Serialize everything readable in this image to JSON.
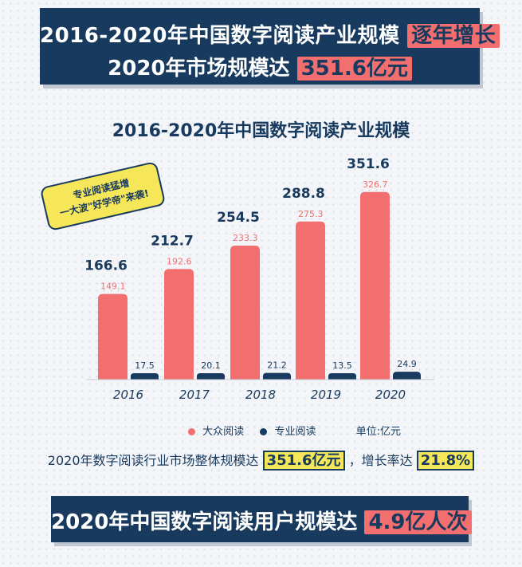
{
  "header": {
    "line1_prefix": "2016-2020年中国数字阅读产业规模",
    "line1_highlight": "逐年增长",
    "line2_prefix": "2020年市场规模达",
    "line2_highlight": "351.6亿元"
  },
  "callout": {
    "line1": "专业阅读猛增",
    "line2": "一大波\"好学帝\"来袭!"
  },
  "legend": {
    "series1": "大众阅读",
    "series2": "专业阅读",
    "unit": "单位:亿元"
  },
  "summary": {
    "prefix": "2020年数字阅读行业市场整体规模达",
    "value": "351.6亿元",
    "mid": "，增长率达",
    "rate": "21.8%"
  },
  "footer": {
    "prefix": "2020年中国数字阅读用户规模达",
    "highlight": "4.9亿人次"
  },
  "colors": {
    "mass": "#f36f6f",
    "professional": "#173a5e",
    "navy": "#173a5e"
  },
  "chart_data": {
    "type": "bar",
    "title": "2016-2020年中国数字阅读产业规模",
    "categories": [
      "2016",
      "2017",
      "2018",
      "2019",
      "2020"
    ],
    "series": [
      {
        "name": "大众阅读",
        "values": [
          149.1,
          192.6,
          233.3,
          275.3,
          326.7
        ]
      },
      {
        "name": "专业阅读",
        "values": [
          17.5,
          20.1,
          21.2,
          13.5,
          24.9
        ]
      }
    ],
    "totals": [
      166.6,
      212.7,
      254.5,
      288.8,
      351.6
    ],
    "xlabel": "",
    "ylabel": "",
    "grid": false,
    "legend_position": "bottom"
  }
}
